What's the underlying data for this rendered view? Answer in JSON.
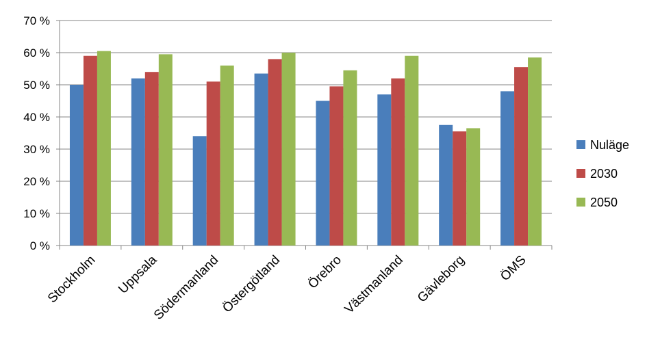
{
  "chart_data": {
    "type": "bar",
    "categories": [
      "Stockholm",
      "Uppsala",
      "Södermanland",
      "Östergötland",
      "Örebro",
      "Västmanland",
      "Gävleborg",
      "ÖMS"
    ],
    "series": [
      {
        "name": "Nuläge",
        "color": "#4A7EBB",
        "values": [
          50,
          52,
          34,
          53.5,
          45,
          47,
          37.5,
          48
        ]
      },
      {
        "name": "2030",
        "color": "#BE4B48",
        "values": [
          59,
          54,
          51,
          58,
          49.5,
          52,
          35.5,
          55.5
        ]
      },
      {
        "name": "2050",
        "color": "#98B954",
        "values": [
          60.5,
          59.5,
          56,
          60,
          54.5,
          59,
          36.5,
          58.5
        ]
      }
    ],
    "ylim": [
      0,
      70
    ],
    "yticks": [
      0,
      10,
      20,
      30,
      40,
      50,
      60,
      70
    ],
    "ytick_labels": [
      "0 %",
      "10 %",
      "20 %",
      "30 %",
      "40 %",
      "50 %",
      "60 %",
      "70 %"
    ],
    "grid": "horizontal",
    "legend_position": "right",
    "title": "",
    "xlabel": "",
    "ylabel": ""
  }
}
